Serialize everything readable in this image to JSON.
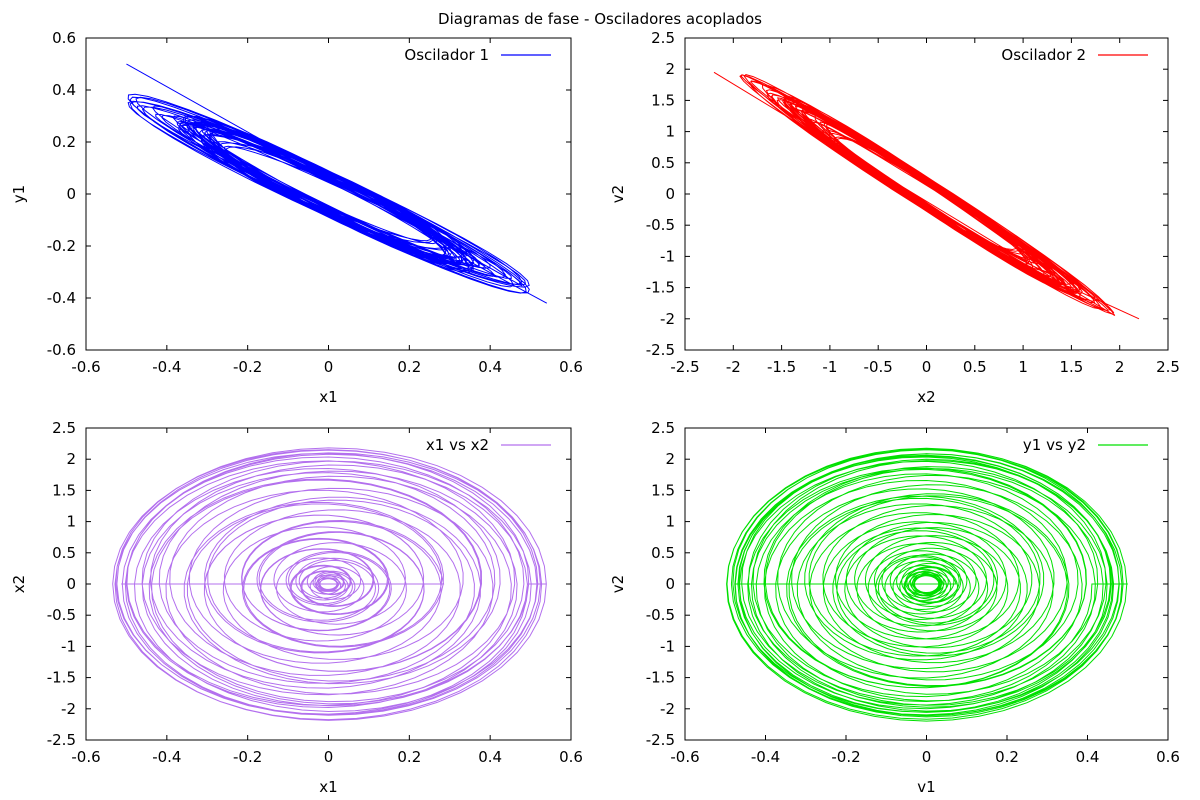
{
  "title": "Diagramas de fase - Osciladores acoplados",
  "chart_data": [
    {
      "type": "line",
      "xlabel": "x1",
      "ylabel": "y1",
      "xlim": [
        -0.6,
        0.6
      ],
      "ylim": [
        -0.6,
        0.6
      ],
      "xticks": [
        "-0.6",
        "-0.4",
        "-0.2",
        "0",
        "0.2",
        "0.4",
        "0.6"
      ],
      "yticks": [
        "-0.6",
        "-0.4",
        "-0.2",
        "0",
        "0.2",
        "0.4",
        "0.6"
      ],
      "legend": "top-right",
      "series": [
        {
          "name": "Oscilador 1",
          "color": "#0000ff",
          "shape": "diagonal",
          "params": {
            "ax": 0.5,
            "slope": -0.9,
            "w": 0.09,
            "turns": 40,
            "seed": 1,
            "start": [
              -0.5,
              0.5
            ],
            "end": [
              0.54,
              -0.42
            ]
          }
        }
      ]
    },
    {
      "type": "line",
      "xlabel": "x2",
      "ylabel": "v2",
      "xlim": [
        -2.5,
        2.5
      ],
      "ylim": [
        -2.5,
        2.5
      ],
      "xticks": [
        "-2.5",
        "-2",
        "-1.5",
        "-1",
        "-0.5",
        "0",
        "0.5",
        "1",
        "1.5",
        "2",
        "2.5"
      ],
      "yticks": [
        "-2.5",
        "-2",
        "-1.5",
        "-1",
        "-0.5",
        "0",
        "0.5",
        "1",
        "1.5",
        "2",
        "2.5"
      ],
      "legend": "top-right",
      "series": [
        {
          "name": "Oscilador 2",
          "color": "#ff0000",
          "shape": "diagonal",
          "params": {
            "ax": 2.0,
            "slope": -1.0,
            "w": 0.28,
            "turns": 40,
            "seed": 2,
            "start": [
              -2.2,
              1.95
            ],
            "end": [
              2.2,
              -2.0
            ]
          }
        }
      ]
    },
    {
      "type": "line",
      "xlabel": "x1",
      "ylabel": "x2",
      "xlim": [
        -0.6,
        0.6
      ],
      "ylim": [
        -2.5,
        2.5
      ],
      "xticks": [
        "-0.6",
        "-0.4",
        "-0.2",
        "0",
        "0.2",
        "0.4",
        "0.6"
      ],
      "yticks": [
        "-2.5",
        "-2",
        "-1.5",
        "-1",
        "-0.5",
        "0",
        "0.5",
        "1",
        "1.5",
        "2",
        "2.5"
      ],
      "legend": "top-right",
      "series": [
        {
          "name": "x1 vs x2",
          "color": "#b370ee",
          "shape": "spiral",
          "params": {
            "rx": 0.54,
            "ry": 2.2,
            "rmin": 0.06,
            "turns": 55,
            "seed": 3,
            "cx": 0.0,
            "cy": 0.0
          }
        }
      ]
    },
    {
      "type": "line",
      "xlabel": "v1",
      "ylabel": "v2",
      "xlim": [
        -0.6,
        0.6
      ],
      "ylim": [
        -2.5,
        2.5
      ],
      "xticks": [
        "-0.6",
        "-0.4",
        "-0.2",
        "0",
        "0.2",
        "0.4",
        "0.6"
      ],
      "yticks": [
        "-2.5",
        "-2",
        "-1.5",
        "-1",
        "-0.5",
        "0",
        "0.5",
        "1",
        "1.5",
        "2",
        "2.5"
      ],
      "legend": "top-right",
      "series": [
        {
          "name": "y1 vs y2",
          "color": "#00e000",
          "shape": "spiral",
          "params": {
            "rx": 0.5,
            "ry": 2.2,
            "rmin": 0.09,
            "turns": 60,
            "seed": 4,
            "cx": 0.0,
            "cy": 0.0
          }
        }
      ]
    }
  ]
}
